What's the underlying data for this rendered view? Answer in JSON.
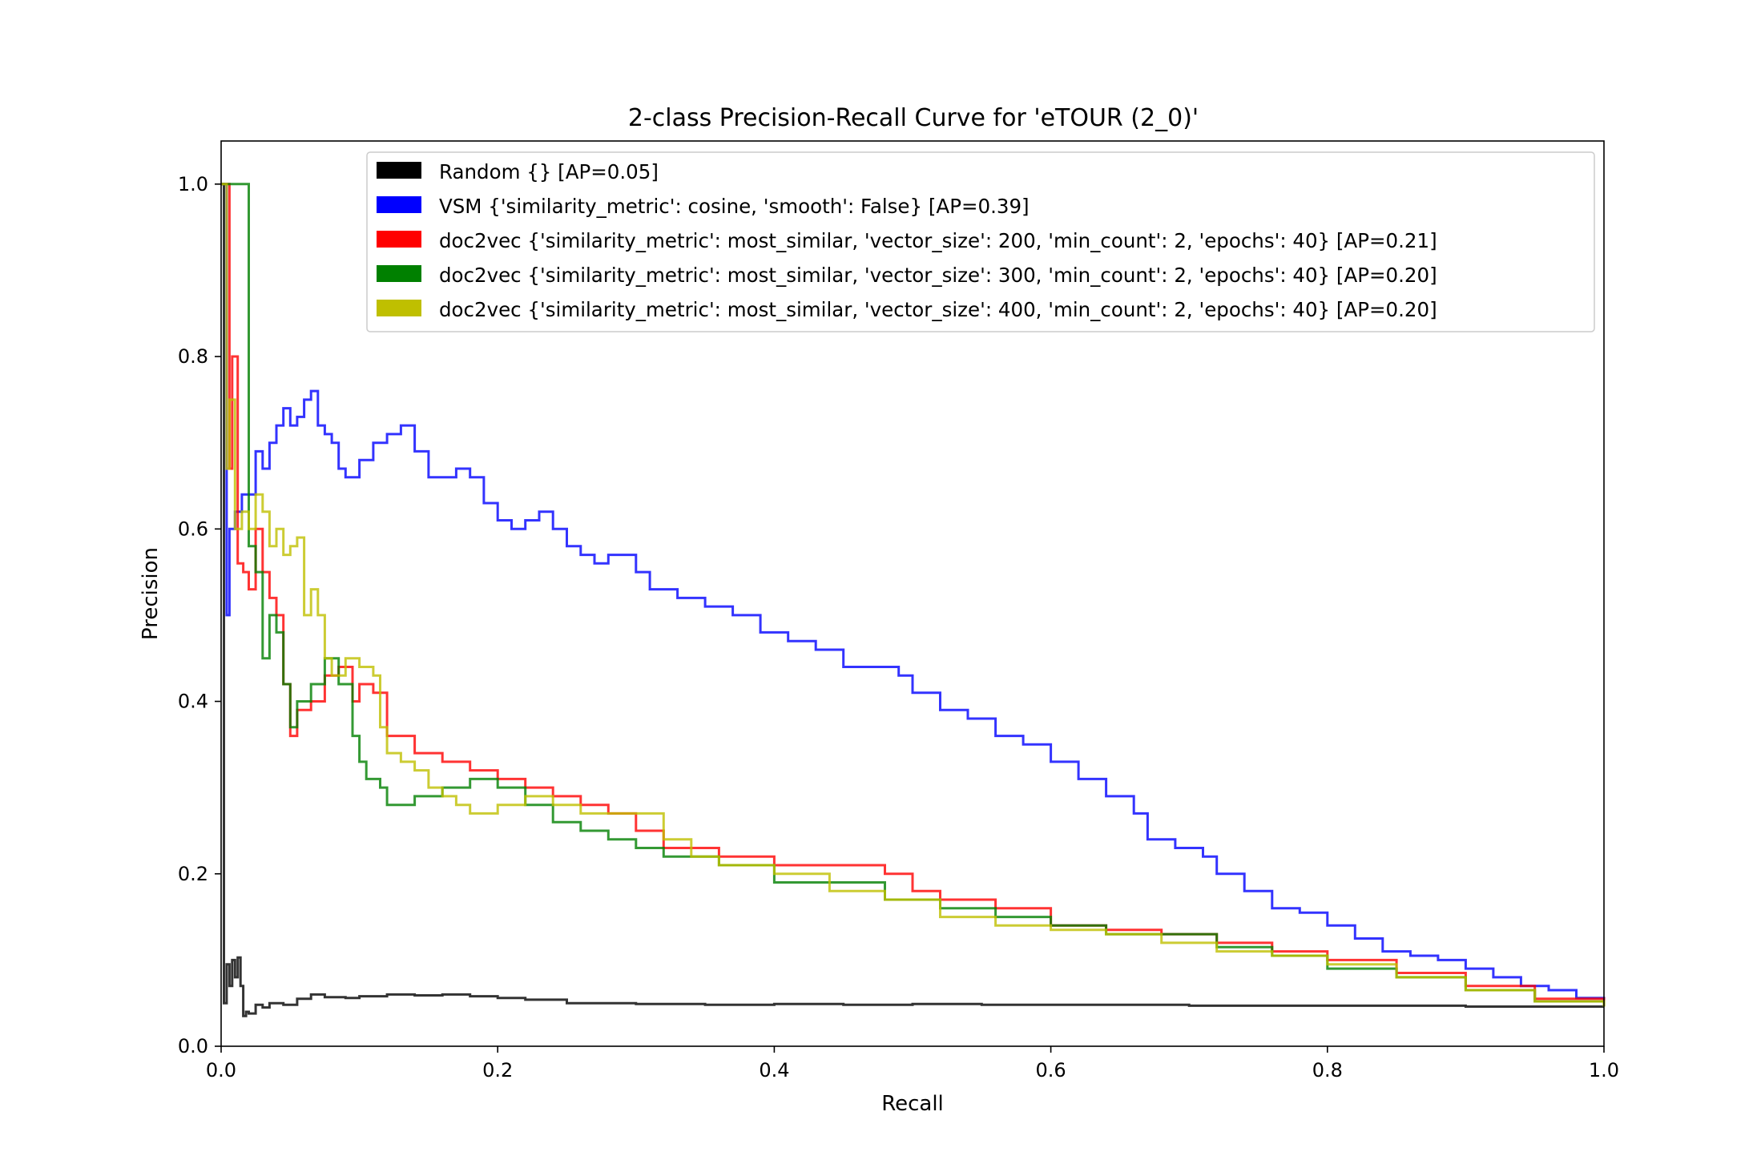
{
  "chart_data": {
    "type": "line",
    "title": "2-class Precision-Recall Curve for 'eTOUR (2_0)'",
    "xlabel": "Recall",
    "ylabel": "Precision",
    "xlim": [
      0.0,
      1.0
    ],
    "ylim": [
      0.0,
      1.05
    ],
    "xticks": [
      "0.0",
      "0.2",
      "0.4",
      "0.6",
      "0.8",
      "1.0"
    ],
    "yticks": [
      "0.0",
      "0.2",
      "0.4",
      "0.6",
      "0.8",
      "1.0"
    ],
    "grid": false,
    "legend_position": "top-right",
    "series": [
      {
        "name": "Random {} [AP=0.05]",
        "color": "#000000",
        "points": [
          [
            0.0,
            1.0
          ],
          [
            0.002,
            0.2
          ],
          [
            0.002,
            0.05
          ],
          [
            0.004,
            0.095
          ],
          [
            0.006,
            0.07
          ],
          [
            0.008,
            0.1
          ],
          [
            0.01,
            0.08
          ],
          [
            0.012,
            0.103
          ],
          [
            0.014,
            0.07
          ],
          [
            0.016,
            0.035
          ],
          [
            0.018,
            0.04
          ],
          [
            0.02,
            0.038
          ],
          [
            0.025,
            0.048
          ],
          [
            0.03,
            0.045
          ],
          [
            0.035,
            0.05
          ],
          [
            0.045,
            0.048
          ],
          [
            0.055,
            0.055
          ],
          [
            0.065,
            0.06
          ],
          [
            0.075,
            0.057
          ],
          [
            0.09,
            0.056
          ],
          [
            0.1,
            0.058
          ],
          [
            0.12,
            0.06
          ],
          [
            0.14,
            0.059
          ],
          [
            0.16,
            0.06
          ],
          [
            0.18,
            0.058
          ],
          [
            0.2,
            0.056
          ],
          [
            0.22,
            0.054
          ],
          [
            0.25,
            0.05
          ],
          [
            0.3,
            0.049
          ],
          [
            0.35,
            0.048
          ],
          [
            0.4,
            0.049
          ],
          [
            0.45,
            0.048
          ],
          [
            0.5,
            0.049
          ],
          [
            0.55,
            0.048
          ],
          [
            0.6,
            0.048
          ],
          [
            0.65,
            0.048
          ],
          [
            0.7,
            0.047
          ],
          [
            0.75,
            0.047
          ],
          [
            0.8,
            0.047
          ],
          [
            0.85,
            0.047
          ],
          [
            0.9,
            0.046
          ],
          [
            0.95,
            0.046
          ],
          [
            1.0,
            0.046
          ]
        ]
      },
      {
        "name": "VSM {'similarity_metric': cosine, 'smooth': False} [AP=0.39]",
        "color": "#0000ff",
        "points": [
          [
            0.0,
            1.0
          ],
          [
            0.004,
            0.5
          ],
          [
            0.006,
            0.6
          ],
          [
            0.01,
            0.62
          ],
          [
            0.015,
            0.64
          ],
          [
            0.02,
            0.64
          ],
          [
            0.025,
            0.69
          ],
          [
            0.03,
            0.67
          ],
          [
            0.035,
            0.7
          ],
          [
            0.04,
            0.72
          ],
          [
            0.045,
            0.74
          ],
          [
            0.05,
            0.72
          ],
          [
            0.055,
            0.73
          ],
          [
            0.06,
            0.75
          ],
          [
            0.065,
            0.76
          ],
          [
            0.07,
            0.72
          ],
          [
            0.075,
            0.71
          ],
          [
            0.08,
            0.7
          ],
          [
            0.085,
            0.67
          ],
          [
            0.09,
            0.66
          ],
          [
            0.1,
            0.68
          ],
          [
            0.11,
            0.7
          ],
          [
            0.12,
            0.71
          ],
          [
            0.13,
            0.72
          ],
          [
            0.14,
            0.69
          ],
          [
            0.15,
            0.66
          ],
          [
            0.16,
            0.66
          ],
          [
            0.17,
            0.67
          ],
          [
            0.18,
            0.66
          ],
          [
            0.19,
            0.63
          ],
          [
            0.2,
            0.61
          ],
          [
            0.21,
            0.6
          ],
          [
            0.22,
            0.61
          ],
          [
            0.23,
            0.62
          ],
          [
            0.24,
            0.6
          ],
          [
            0.25,
            0.58
          ],
          [
            0.26,
            0.57
          ],
          [
            0.27,
            0.56
          ],
          [
            0.28,
            0.57
          ],
          [
            0.29,
            0.57
          ],
          [
            0.3,
            0.55
          ],
          [
            0.31,
            0.53
          ],
          [
            0.33,
            0.52
          ],
          [
            0.35,
            0.51
          ],
          [
            0.37,
            0.5
          ],
          [
            0.39,
            0.48
          ],
          [
            0.41,
            0.47
          ],
          [
            0.43,
            0.46
          ],
          [
            0.45,
            0.44
          ],
          [
            0.47,
            0.44
          ],
          [
            0.49,
            0.43
          ],
          [
            0.5,
            0.41
          ],
          [
            0.52,
            0.39
          ],
          [
            0.54,
            0.38
          ],
          [
            0.56,
            0.36
          ],
          [
            0.58,
            0.35
          ],
          [
            0.6,
            0.33
          ],
          [
            0.62,
            0.31
          ],
          [
            0.64,
            0.29
          ],
          [
            0.66,
            0.27
          ],
          [
            0.67,
            0.24
          ],
          [
            0.69,
            0.23
          ],
          [
            0.71,
            0.22
          ],
          [
            0.72,
            0.2
          ],
          [
            0.74,
            0.18
          ],
          [
            0.76,
            0.16
          ],
          [
            0.78,
            0.155
          ],
          [
            0.8,
            0.14
          ],
          [
            0.82,
            0.125
          ],
          [
            0.84,
            0.11
          ],
          [
            0.86,
            0.105
          ],
          [
            0.88,
            0.1
          ],
          [
            0.9,
            0.09
          ],
          [
            0.92,
            0.08
          ],
          [
            0.94,
            0.07
          ],
          [
            0.96,
            0.065
          ],
          [
            0.98,
            0.056
          ],
          [
            1.0,
            0.047
          ]
        ]
      },
      {
        "name": "doc2vec {'similarity_metric': most_similar, 'vector_size': 200, 'min_count': 2, 'epochs': 40} [AP=0.21]",
        "color": "#ff0000",
        "points": [
          [
            0.0,
            1.0
          ],
          [
            0.006,
            0.67
          ],
          [
            0.008,
            0.8
          ],
          [
            0.012,
            0.56
          ],
          [
            0.016,
            0.55
          ],
          [
            0.02,
            0.53
          ],
          [
            0.025,
            0.6
          ],
          [
            0.03,
            0.55
          ],
          [
            0.035,
            0.52
          ],
          [
            0.04,
            0.5
          ],
          [
            0.045,
            0.42
          ],
          [
            0.05,
            0.36
          ],
          [
            0.055,
            0.39
          ],
          [
            0.065,
            0.4
          ],
          [
            0.075,
            0.43
          ],
          [
            0.085,
            0.44
          ],
          [
            0.095,
            0.4
          ],
          [
            0.1,
            0.42
          ],
          [
            0.11,
            0.41
          ],
          [
            0.12,
            0.36
          ],
          [
            0.14,
            0.34
          ],
          [
            0.16,
            0.33
          ],
          [
            0.18,
            0.32
          ],
          [
            0.2,
            0.31
          ],
          [
            0.22,
            0.3
          ],
          [
            0.24,
            0.29
          ],
          [
            0.26,
            0.28
          ],
          [
            0.28,
            0.27
          ],
          [
            0.3,
            0.25
          ],
          [
            0.32,
            0.23
          ],
          [
            0.34,
            0.23
          ],
          [
            0.36,
            0.22
          ],
          [
            0.4,
            0.21
          ],
          [
            0.44,
            0.21
          ],
          [
            0.48,
            0.2
          ],
          [
            0.5,
            0.18
          ],
          [
            0.52,
            0.17
          ],
          [
            0.56,
            0.16
          ],
          [
            0.6,
            0.14
          ],
          [
            0.64,
            0.135
          ],
          [
            0.68,
            0.13
          ],
          [
            0.72,
            0.12
          ],
          [
            0.76,
            0.11
          ],
          [
            0.8,
            0.1
          ],
          [
            0.85,
            0.085
          ],
          [
            0.9,
            0.07
          ],
          [
            0.95,
            0.055
          ],
          [
            1.0,
            0.046
          ]
        ]
      },
      {
        "name": "doc2vec {'similarity_metric': most_similar, 'vector_size': 300, 'min_count': 2, 'epochs': 40} [AP=0.20]",
        "color": "#008000",
        "points": [
          [
            0.0,
            1.0
          ],
          [
            0.02,
            1.0
          ],
          [
            0.02,
            0.58
          ],
          [
            0.025,
            0.55
          ],
          [
            0.03,
            0.53
          ],
          [
            0.03,
            0.45
          ],
          [
            0.035,
            0.5
          ],
          [
            0.04,
            0.48
          ],
          [
            0.045,
            0.42
          ],
          [
            0.05,
            0.37
          ],
          [
            0.055,
            0.4
          ],
          [
            0.065,
            0.42
          ],
          [
            0.075,
            0.45
          ],
          [
            0.085,
            0.42
          ],
          [
            0.095,
            0.36
          ],
          [
            0.1,
            0.33
          ],
          [
            0.105,
            0.31
          ],
          [
            0.115,
            0.3
          ],
          [
            0.12,
            0.28
          ],
          [
            0.14,
            0.29
          ],
          [
            0.16,
            0.3
          ],
          [
            0.18,
            0.31
          ],
          [
            0.2,
            0.3
          ],
          [
            0.22,
            0.28
          ],
          [
            0.24,
            0.26
          ],
          [
            0.26,
            0.25
          ],
          [
            0.28,
            0.24
          ],
          [
            0.3,
            0.23
          ],
          [
            0.32,
            0.22
          ],
          [
            0.36,
            0.21
          ],
          [
            0.4,
            0.19
          ],
          [
            0.44,
            0.19
          ],
          [
            0.48,
            0.17
          ],
          [
            0.52,
            0.16
          ],
          [
            0.56,
            0.15
          ],
          [
            0.6,
            0.14
          ],
          [
            0.64,
            0.13
          ],
          [
            0.68,
            0.13
          ],
          [
            0.72,
            0.115
          ],
          [
            0.76,
            0.105
          ],
          [
            0.8,
            0.09
          ],
          [
            0.85,
            0.08
          ],
          [
            0.9,
            0.065
          ],
          [
            0.95,
            0.052
          ],
          [
            1.0,
            0.046
          ]
        ]
      },
      {
        "name": "doc2vec {'similarity_metric': most_similar, 'vector_size': 400, 'min_count': 2, 'epochs': 40} [AP=0.20]",
        "color": "#bfbf00",
        "points": [
          [
            0.0,
            1.0
          ],
          [
            0.004,
            0.67
          ],
          [
            0.006,
            0.75
          ],
          [
            0.01,
            0.6
          ],
          [
            0.015,
            0.62
          ],
          [
            0.02,
            0.6
          ],
          [
            0.025,
            0.64
          ],
          [
            0.03,
            0.62
          ],
          [
            0.035,
            0.58
          ],
          [
            0.04,
            0.6
          ],
          [
            0.045,
            0.57
          ],
          [
            0.05,
            0.58
          ],
          [
            0.055,
            0.59
          ],
          [
            0.06,
            0.5
          ],
          [
            0.065,
            0.53
          ],
          [
            0.07,
            0.5
          ],
          [
            0.075,
            0.45
          ],
          [
            0.08,
            0.43
          ],
          [
            0.09,
            0.45
          ],
          [
            0.1,
            0.44
          ],
          [
            0.11,
            0.43
          ],
          [
            0.115,
            0.37
          ],
          [
            0.12,
            0.34
          ],
          [
            0.13,
            0.33
          ],
          [
            0.14,
            0.32
          ],
          [
            0.15,
            0.3
          ],
          [
            0.16,
            0.29
          ],
          [
            0.17,
            0.28
          ],
          [
            0.18,
            0.27
          ],
          [
            0.2,
            0.28
          ],
          [
            0.22,
            0.29
          ],
          [
            0.24,
            0.28
          ],
          [
            0.26,
            0.27
          ],
          [
            0.28,
            0.27
          ],
          [
            0.3,
            0.27
          ],
          [
            0.32,
            0.24
          ],
          [
            0.34,
            0.22
          ],
          [
            0.36,
            0.21
          ],
          [
            0.4,
            0.2
          ],
          [
            0.44,
            0.18
          ],
          [
            0.48,
            0.17
          ],
          [
            0.52,
            0.15
          ],
          [
            0.56,
            0.14
          ],
          [
            0.6,
            0.135
          ],
          [
            0.64,
            0.13
          ],
          [
            0.68,
            0.12
          ],
          [
            0.72,
            0.11
          ],
          [
            0.76,
            0.105
          ],
          [
            0.8,
            0.095
          ],
          [
            0.85,
            0.08
          ],
          [
            0.9,
            0.065
          ],
          [
            0.95,
            0.052
          ],
          [
            1.0,
            0.046
          ]
        ]
      }
    ]
  }
}
